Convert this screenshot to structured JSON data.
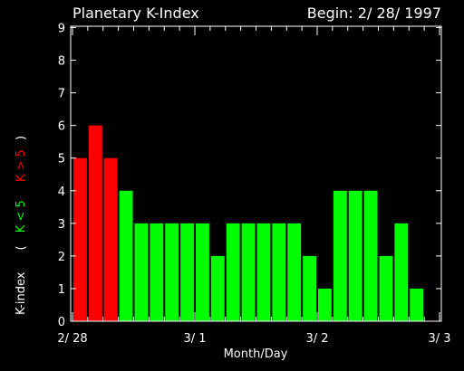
{
  "chart_data": {
    "type": "bar",
    "title": "Planetary K-Index",
    "subtitle": "Begin: 2/ 28/ 1997",
    "xlabel": "Month/Day",
    "ylabel_parts": [
      "K-index",
      "(",
      "K < 5",
      "K > 5",
      ")"
    ],
    "ylim": [
      0,
      9
    ],
    "yticks": [
      "0",
      "1",
      "2",
      "3",
      "4",
      "5",
      "6",
      "7",
      "8",
      "9"
    ],
    "xticks": [
      {
        "label": "2/ 28",
        "day": 0
      },
      {
        "label": "3/ 1",
        "day": 1
      },
      {
        "label": "3/ 2",
        "day": 2
      },
      {
        "label": "3/ 3",
        "day": 3
      }
    ],
    "bars_per_day": 8,
    "values": [
      5,
      6,
      5,
      4,
      3,
      3,
      3,
      3,
      3,
      2,
      3,
      3,
      3,
      3,
      3,
      2,
      1,
      4,
      4,
      4,
      2,
      3,
      1
    ],
    "threshold": 5,
    "colors": {
      "low": "#00ff00",
      "high": "#ff0000",
      "axis": "#ffffff",
      "background": "#000000"
    }
  }
}
